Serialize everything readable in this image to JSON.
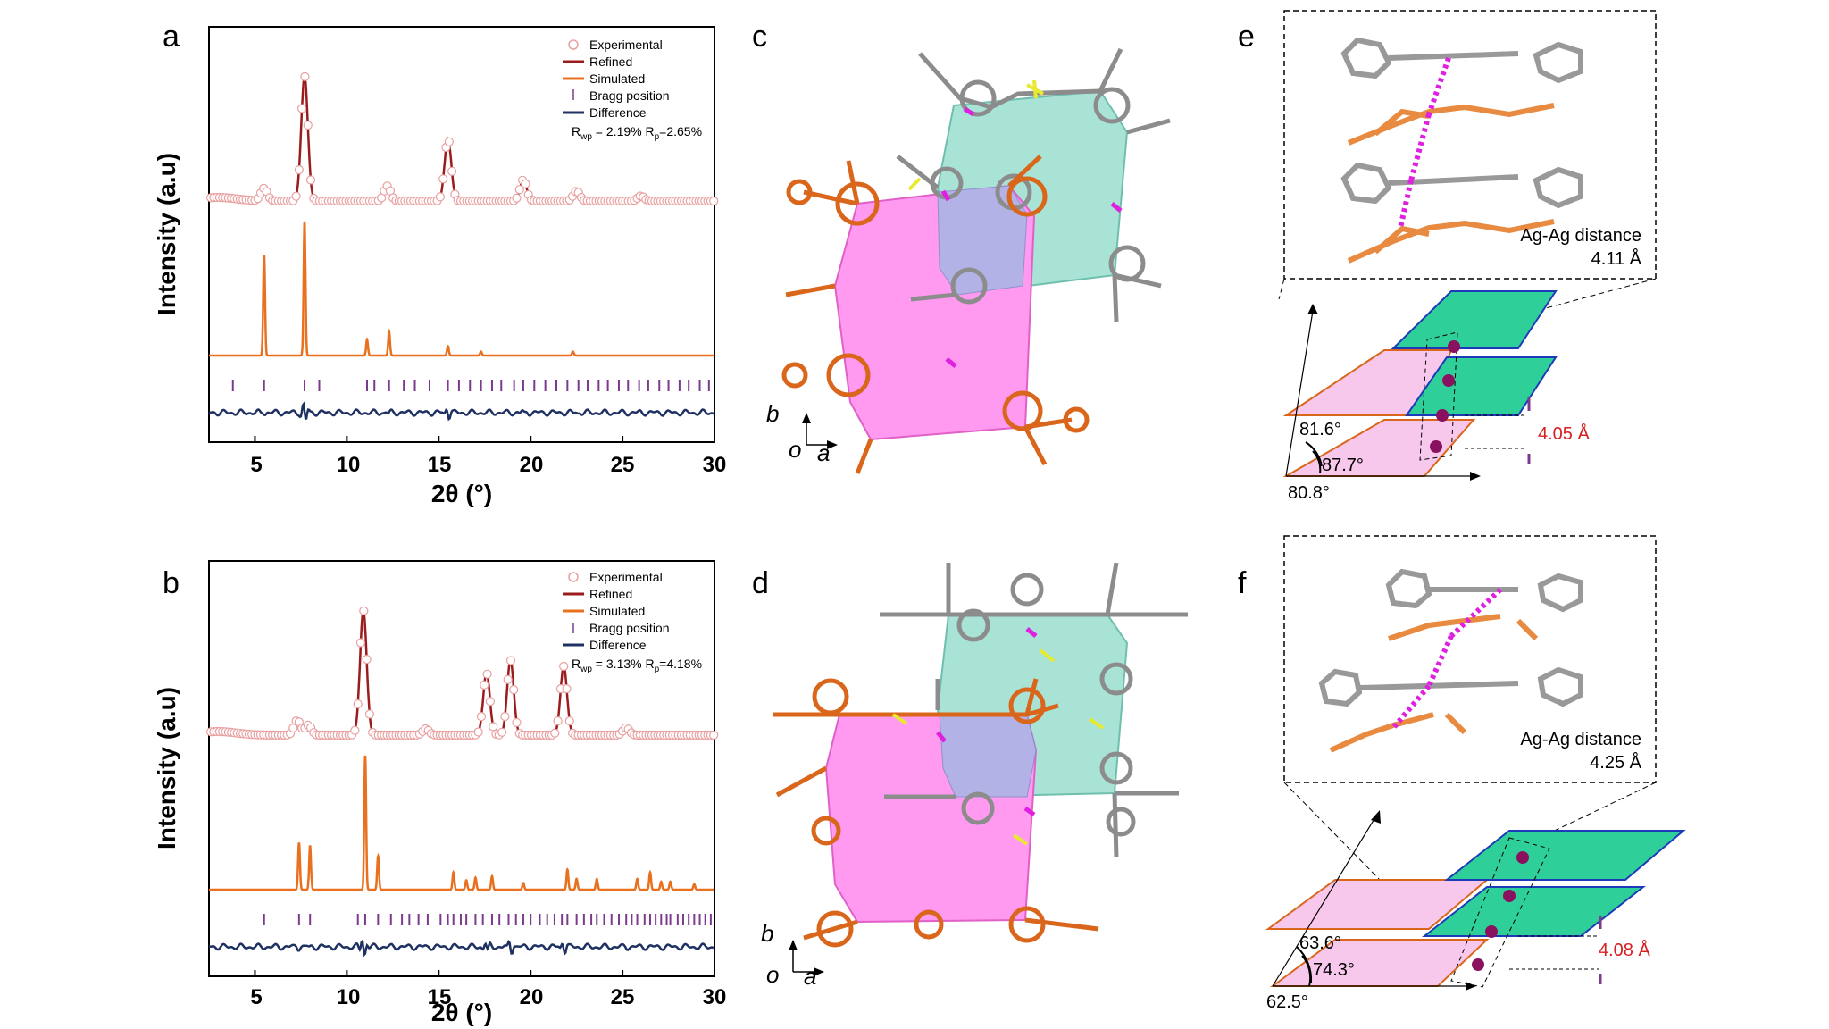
{
  "panels": {
    "a": "a",
    "b": "b",
    "c": "c",
    "d": "d",
    "e": "e",
    "f": "f"
  },
  "chart_data": [
    {
      "type": "line",
      "panel": "a",
      "xlabel": "2θ (°)",
      "ylabel": "Intensity (a.u)",
      "xlim": [
        2.5,
        30
      ],
      "xticks": [
        "5",
        "10",
        "15",
        "20",
        "25",
        "30"
      ],
      "legend": [
        "Experimental",
        "Refined",
        "Simulated",
        "Bragg position",
        "Difference"
      ],
      "stats": {
        "rwp": "2.19%",
        "rp": "2.65%"
      },
      "peaks_simulated": [
        {
          "x": 5.5,
          "h": 0.75
        },
        {
          "x": 7.7,
          "h": 1.0
        },
        {
          "x": 11.1,
          "h": 0.12
        },
        {
          "x": 12.3,
          "h": 0.18
        },
        {
          "x": 15.5,
          "h": 0.07
        },
        {
          "x": 17.3,
          "h": 0.03
        },
        {
          "x": 22.3,
          "h": 0.03
        }
      ],
      "peaks_experimental": [
        {
          "x": 5.5,
          "h": 0.1
        },
        {
          "x": 7.7,
          "h": 1.0
        },
        {
          "x": 12.2,
          "h": 0.12
        },
        {
          "x": 15.5,
          "h": 0.5
        },
        {
          "x": 19.6,
          "h": 0.17
        },
        {
          "x": 22.5,
          "h": 0.08
        },
        {
          "x": 26,
          "h": 0.04
        }
      ],
      "bragg_positions": [
        3.8,
        5.5,
        7.7,
        8.5,
        11.1,
        11.5,
        12.3,
        13.1,
        13.7,
        14.5,
        15.5,
        16.1,
        16.7,
        17.3,
        17.9,
        18.4,
        19.1,
        19.6,
        20.2,
        20.8,
        21.4,
        22.0,
        22.6,
        23.1,
        23.7,
        24.2,
        24.8,
        25.3,
        25.9,
        26.4,
        27.0,
        27.5,
        28.1,
        28.6,
        29.2,
        29.7
      ]
    },
    {
      "type": "line",
      "panel": "b",
      "xlabel": "2θ (°)",
      "ylabel": "Intensity (a.u)",
      "xlim": [
        2.5,
        30
      ],
      "xticks": [
        "5",
        "10",
        "15",
        "20",
        "25",
        "30"
      ],
      "legend": [
        "Experimental",
        "Refined",
        "Simulated",
        "Bragg position",
        "Difference"
      ],
      "stats": {
        "rwp": "3.13%",
        "rp": "4.18%"
      },
      "peaks_simulated": [
        {
          "x": 7.4,
          "h": 0.35
        },
        {
          "x": 8.0,
          "h": 0.33
        },
        {
          "x": 11.0,
          "h": 1.0
        },
        {
          "x": 11.7,
          "h": 0.25
        },
        {
          "x": 15.8,
          "h": 0.13
        },
        {
          "x": 16.5,
          "h": 0.07
        },
        {
          "x": 17.0,
          "h": 0.09
        },
        {
          "x": 17.9,
          "h": 0.1
        },
        {
          "x": 19.6,
          "h": 0.05
        },
        {
          "x": 22.0,
          "h": 0.15
        },
        {
          "x": 22.5,
          "h": 0.08
        },
        {
          "x": 23.6,
          "h": 0.08
        },
        {
          "x": 25.8,
          "h": 0.08
        },
        {
          "x": 26.5,
          "h": 0.13
        },
        {
          "x": 27.1,
          "h": 0.06
        },
        {
          "x": 27.6,
          "h": 0.06
        },
        {
          "x": 28.9,
          "h": 0.04
        }
      ],
      "peaks_experimental": [
        {
          "x": 7.3,
          "h": 0.12
        },
        {
          "x": 7.9,
          "h": 0.08
        },
        {
          "x": 10.9,
          "h": 1.0
        },
        {
          "x": 14.3,
          "h": 0.05
        },
        {
          "x": 17.6,
          "h": 0.5
        },
        {
          "x": 18.9,
          "h": 0.6
        },
        {
          "x": 21.8,
          "h": 0.55
        },
        {
          "x": 25.2,
          "h": 0.06
        }
      ],
      "bragg_positions": [
        5.5,
        7.4,
        8.0,
        10.6,
        11.0,
        11.7,
        12.4,
        13.0,
        13.4,
        13.9,
        14.4,
        15.1,
        15.5,
        15.8,
        16.2,
        16.5,
        17.0,
        17.4,
        17.9,
        18.3,
        18.8,
        19.2,
        19.6,
        20.0,
        20.5,
        20.9,
        21.3,
        21.7,
        22.0,
        22.5,
        22.9,
        23.3,
        23.6,
        24.0,
        24.4,
        24.8,
        25.2,
        25.5,
        25.8,
        26.2,
        26.5,
        26.8,
        27.1,
        27.4,
        27.6,
        28.0,
        28.3,
        28.6,
        28.9,
        29.2,
        29.5,
        29.8
      ]
    }
  ],
  "structure": {
    "c": {
      "axis_b": "b",
      "axis_o": "o",
      "axis_a": "a"
    },
    "d": {
      "axis_b": "b",
      "axis_o": "o",
      "axis_a": "a"
    }
  },
  "stacking": {
    "e": {
      "distance_label": "Ag-Ag distance",
      "distance_value": "4.11 Å",
      "layer_spacing": "4.05 Å",
      "angles": [
        "81.6°",
        "87.7°",
        "80.8°"
      ]
    },
    "f": {
      "distance_label": "Ag-Ag distance",
      "distance_value": "4.25 Å",
      "layer_spacing": "4.08 Å",
      "angles": [
        "63.6°",
        "74.3°",
        "62.5°"
      ]
    }
  },
  "colors": {
    "experimental": "#e8a0a0",
    "refined": "#9b1c1c",
    "simulated": "#e8701e",
    "bragg": "#7b3a8c",
    "difference": "#1f3162",
    "pink_pore": "#ff9af0",
    "cyan_pore": "#a8e3d6",
    "overlap": "#b3b2e6",
    "orange_frame": "#d9661a",
    "gray_frame": "#8c8c8c",
    "green_plane": "#2fcf9a",
    "plane_edge": "#1d3bb8",
    "magenta": "#e020e0",
    "dot": "#8a1060",
    "red_text": "#d62020"
  }
}
